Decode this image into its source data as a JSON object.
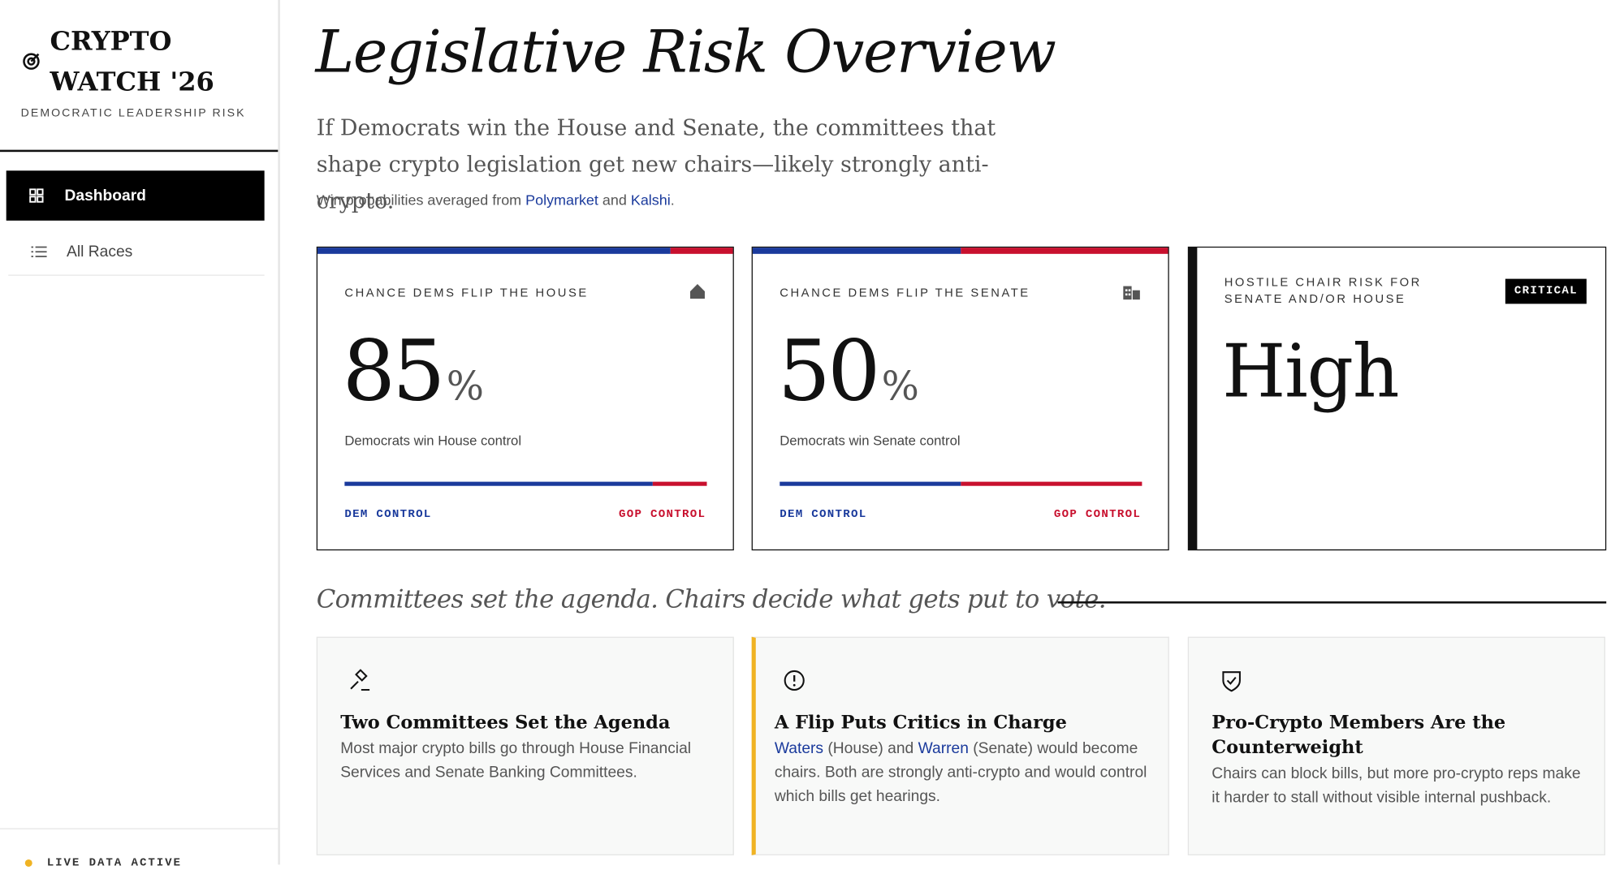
{
  "sidebar": {
    "brand": "CRYPTO WATCH '26",
    "tagline": "DEMOCRATIC LEADERSHIP RISK",
    "nav": [
      "Dashboard",
      "All Races"
    ],
    "status": "LIVE DATA ACTIVE"
  },
  "header": {
    "title": "Legislative Risk Overview",
    "subtitle": "If Democrats win the House and Senate, the committees that shape crypto legislation get new chairs—likely strongly anti-crypto.",
    "source": [
      "Win probabilities averaged from ",
      "Polymarket",
      " and ",
      "Kalshi",
      "."
    ]
  },
  "cards": [
    {
      "label": "CHANCE DEMS FLIP THE HOUSE",
      "value": 85,
      "unit": "%",
      "caption": "Democrats win House control",
      "dem_label": "DEM CONTROL",
      "gop_label": "GOP CONTROL"
    },
    {
      "label": "CHANCE DEMS FLIP THE SENATE",
      "value": 50,
      "unit": "%",
      "caption": "Democrats win Senate control",
      "dem_label": "DEM CONTROL",
      "gop_label": "GOP CONTROL"
    },
    {
      "label": "HOSTILE CHAIR RISK FOR SENATE AND/OR HOUSE",
      "badge": "CRITICAL",
      "value": "High"
    }
  ],
  "section": {
    "heading": "Committees set the agenda. Chairs decide what gets put to vote.",
    "items": [
      {
        "title": "Two Committees Set the Agenda",
        "body": [
          "Most major crypto bills go through House Financial Services and Senate Banking Committees."
        ]
      },
      {
        "title": "A Flip Puts Critics in Charge",
        "body": [
          "Waters",
          " (House) and ",
          "Warren",
          " (Senate) would become chairs. Both are strongly anti-crypto and would control which bills get hearings."
        ]
      },
      {
        "title": "Pro-Crypto Members Are the Counterweight",
        "body": [
          "Chairs can block bills, but more pro-crypto reps make it harder to stall without visible internal pushback."
        ]
      }
    ]
  }
}
